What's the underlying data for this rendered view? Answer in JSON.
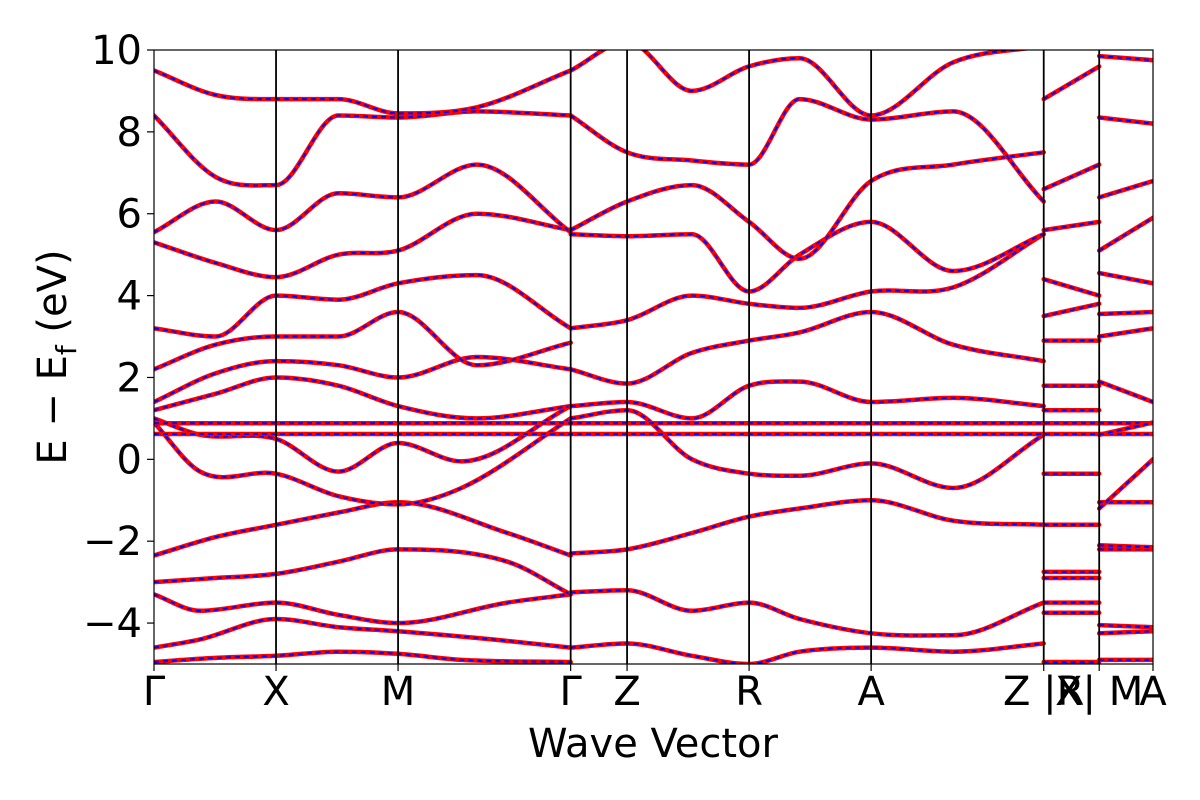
{
  "chart_data": {
    "type": "line",
    "title": "",
    "xlabel": "Wave Vector",
    "ylabel": "E − E_f (eV)",
    "ylabel_main": "E − E",
    "ylabel_sub": "f",
    "ylabel_tail": " (eV)",
    "ylim": [
      -5,
      10
    ],
    "yticks": [
      -4,
      -2,
      0,
      2,
      4,
      6,
      8,
      10
    ],
    "ytick_labels": [
      "−4",
      "−2",
      "0",
      "2",
      "4",
      "6",
      "8",
      "10"
    ],
    "xlim": [
      0,
      6.5
    ],
    "kpoints": [
      {
        "label": "Γ",
        "x": 0.0
      },
      {
        "label": "X",
        "x": 0.794
      },
      {
        "label": "M",
        "x": 1.588
      },
      {
        "label": "Γ",
        "x": 2.711
      },
      {
        "label": "Z",
        "x": 3.078
      },
      {
        "label": "R",
        "x": 3.872
      },
      {
        "label": "A",
        "x": 4.666
      },
      {
        "label": "Z |R",
        "x": 5.789
      },
      {
        "label": "X| M",
        "x": 6.15
      },
      {
        "label": "A",
        "x": 6.5
      }
    ],
    "segment_breaks": [
      5.789,
      6.15
    ],
    "grid": false,
    "legend": "none",
    "series": [
      {
        "color": "#ff0000",
        "style": "solid"
      },
      {
        "color": "#0000ff",
        "style": "dashed"
      }
    ],
    "bands": [
      {
        "x": [
          0,
          0.4,
          0.794,
          1.2,
          1.588,
          2.0,
          2.711
        ],
        "y": [
          -4.95,
          -4.85,
          -4.8,
          -4.7,
          -4.75,
          -4.9,
          -4.95
        ]
      },
      {
        "x": [
          0,
          0.3,
          0.794,
          1.2,
          1.588,
          2.2,
          2.711
        ],
        "y": [
          -4.6,
          -4.4,
          -3.9,
          -4.1,
          -4.2,
          -4.4,
          -4.6
        ]
      },
      {
        "x": [
          0,
          0.3,
          0.794,
          1.2,
          1.588,
          2.3,
          2.711
        ],
        "y": [
          -3.3,
          -3.7,
          -3.5,
          -3.8,
          -4.0,
          -3.5,
          -3.3
        ]
      },
      {
        "x": [
          0,
          0.4,
          0.794,
          1.2,
          1.588,
          2.3,
          2.711
        ],
        "y": [
          -3.0,
          -2.9,
          -2.8,
          -2.5,
          -2.2,
          -2.5,
          -3.3
        ]
      },
      {
        "x": [
          0,
          0.4,
          0.794,
          1.2,
          1.588,
          2.3,
          2.711
        ],
        "y": [
          -2.35,
          -1.9,
          -1.6,
          -1.3,
          -1.05,
          -1.8,
          -2.35
        ]
      },
      {
        "x": [
          0,
          0.3,
          0.794,
          1.2,
          1.588,
          2.0,
          2.711
        ],
        "y": [
          0.9,
          -0.3,
          -0.35,
          -0.9,
          -1.1,
          -0.7,
          1.0
        ]
      },
      {
        "x": [
          0,
          0.3,
          0.794,
          1.2,
          1.588,
          2.0,
          2.711
        ],
        "y": [
          1.0,
          0.6,
          0.5,
          -0.3,
          0.4,
          -0.05,
          1.3
        ]
      },
      {
        "x": [
          0,
          0.4,
          0.794,
          1.2,
          1.588,
          2.1,
          2.711
        ],
        "y": [
          1.2,
          1.6,
          2.0,
          1.8,
          1.3,
          1.0,
          1.3
        ]
      },
      {
        "x": [
          0,
          0.4,
          0.794,
          1.2,
          1.588,
          2.1,
          2.711
        ],
        "y": [
          1.4,
          2.1,
          2.4,
          2.3,
          2.0,
          2.5,
          2.2
        ]
      },
      {
        "x": [
          0,
          0.4,
          0.794,
          1.2,
          1.588,
          2.1,
          2.711
        ],
        "y": [
          2.2,
          2.8,
          3.0,
          3.0,
          3.6,
          2.3,
          2.85
        ]
      },
      {
        "x": [
          0,
          0.4,
          0.794,
          1.2,
          1.588,
          2.1,
          2.711
        ],
        "y": [
          3.2,
          3.0,
          4.0,
          3.9,
          4.3,
          4.5,
          3.2
        ]
      },
      {
        "x": [
          0,
          0.4,
          0.794,
          1.2,
          1.588,
          2.1,
          2.711
        ],
        "y": [
          5.3,
          4.8,
          4.45,
          5.0,
          5.1,
          6.0,
          5.6
        ]
      },
      {
        "x": [
          0,
          0.4,
          0.794,
          1.2,
          1.588,
          2.1,
          2.711
        ],
        "y": [
          5.55,
          6.3,
          5.6,
          6.5,
          6.4,
          7.2,
          5.55
        ]
      },
      {
        "x": [
          0,
          0.4,
          0.794,
          1.2,
          1.588,
          2.1,
          2.711
        ],
        "y": [
          8.4,
          6.9,
          6.7,
          8.4,
          8.35,
          8.5,
          8.4
        ]
      },
      {
        "x": [
          0,
          0.4,
          0.794,
          1.2,
          1.588,
          2.1,
          2.711
        ],
        "y": [
          9.5,
          8.9,
          8.8,
          8.8,
          8.45,
          8.6,
          9.5
        ]
      },
      {
        "x": [
          2.711,
          3.078,
          3.5,
          3.872,
          4.2,
          4.666,
          5.2,
          5.789
        ],
        "y": [
          -4.6,
          -4.5,
          -4.8,
          -5.0,
          -4.7,
          -4.6,
          -4.7,
          -4.5
        ]
      },
      {
        "x": [
          2.711,
          3.078,
          3.5,
          3.872,
          4.2,
          4.666,
          5.2,
          5.789
        ],
        "y": [
          -3.25,
          -3.2,
          -3.7,
          -3.5,
          -3.9,
          -4.25,
          -4.3,
          -3.5
        ]
      },
      {
        "x": [
          2.711,
          3.078,
          3.5,
          3.872,
          4.2,
          4.666,
          5.2,
          5.789
        ],
        "y": [
          -2.3,
          -2.2,
          -1.8,
          -1.4,
          -1.2,
          -1.0,
          -1.5,
          -1.6
        ]
      },
      {
        "x": [
          2.711,
          3.078,
          3.5,
          3.872,
          4.2,
          4.666,
          5.2,
          5.789
        ],
        "y": [
          1.0,
          1.2,
          0.0,
          -0.35,
          -0.4,
          -0.1,
          -0.7,
          0.6
        ]
      },
      {
        "x": [
          2.711,
          3.078,
          3.5,
          3.872,
          4.2,
          4.666,
          5.2,
          5.789
        ],
        "y": [
          1.3,
          1.4,
          1.0,
          1.8,
          1.9,
          1.4,
          1.5,
          1.3
        ]
      },
      {
        "x": [
          2.711,
          3.078,
          3.5,
          3.872,
          4.2,
          4.666,
          5.2,
          5.789
        ],
        "y": [
          2.2,
          1.85,
          2.6,
          2.9,
          3.1,
          3.6,
          2.8,
          2.4
        ]
      },
      {
        "x": [
          2.711,
          3.078,
          3.5,
          3.872,
          4.2,
          4.666,
          5.2,
          5.789
        ],
        "y": [
          3.2,
          3.4,
          4.0,
          3.8,
          3.7,
          4.1,
          4.2,
          5.5
        ]
      },
      {
        "x": [
          2.711,
          3.078,
          3.5,
          3.872,
          4.2,
          4.666,
          5.2,
          5.789
        ],
        "y": [
          5.5,
          5.45,
          5.5,
          4.1,
          5.0,
          5.8,
          4.6,
          5.5
        ]
      },
      {
        "x": [
          2.711,
          3.078,
          3.5,
          3.872,
          4.2,
          4.666,
          5.2,
          5.789
        ],
        "y": [
          5.6,
          6.3,
          6.7,
          5.8,
          4.9,
          6.8,
          7.2,
          7.5
        ]
      },
      {
        "x": [
          2.711,
          3.078,
          3.5,
          3.872,
          4.2,
          4.666,
          5.2,
          5.789
        ],
        "y": [
          8.4,
          7.5,
          7.3,
          7.2,
          8.8,
          8.3,
          8.5,
          6.3
        ]
      },
      {
        "x": [
          2.711,
          3.078,
          3.5,
          3.872,
          4.2,
          4.666,
          5.2,
          5.789
        ],
        "y": [
          9.5,
          10.2,
          9.0,
          9.6,
          9.8,
          8.4,
          9.7,
          10.1
        ]
      },
      {
        "x": [
          0,
          6.5
        ],
        "y": [
          0.62,
          0.62
        ]
      },
      {
        "x": [
          0,
          6.5
        ],
        "y": [
          0.88,
          0.88
        ]
      },
      {
        "x": [
          5.789,
          6.15
        ],
        "y": [
          -4.95,
          -4.95
        ]
      },
      {
        "x": [
          5.789,
          6.15
        ],
        "y": [
          -3.75,
          -3.75
        ]
      },
      {
        "x": [
          5.789,
          6.15
        ],
        "y": [
          -3.5,
          -3.5
        ]
      },
      {
        "x": [
          5.789,
          6.15
        ],
        "y": [
          -2.9,
          -2.9
        ]
      },
      {
        "x": [
          5.789,
          6.15
        ],
        "y": [
          -2.75,
          -2.75
        ]
      },
      {
        "x": [
          5.789,
          6.15
        ],
        "y": [
          -1.6,
          -1.6
        ]
      },
      {
        "x": [
          5.789,
          6.15
        ],
        "y": [
          -0.35,
          -0.35
        ]
      },
      {
        "x": [
          5.789,
          6.15
        ],
        "y": [
          1.2,
          1.2
        ]
      },
      {
        "x": [
          5.789,
          6.15
        ],
        "y": [
          1.8,
          1.8
        ]
      },
      {
        "x": [
          5.789,
          6.15
        ],
        "y": [
          2.9,
          2.9
        ]
      },
      {
        "x": [
          5.789,
          6.15
        ],
        "y": [
          3.5,
          3.8
        ]
      },
      {
        "x": [
          5.789,
          6.15
        ],
        "y": [
          4.4,
          4.0
        ]
      },
      {
        "x": [
          5.789,
          6.15
        ],
        "y": [
          5.6,
          5.8
        ]
      },
      {
        "x": [
          5.789,
          6.15
        ],
        "y": [
          6.6,
          7.2
        ]
      },
      {
        "x": [
          5.789,
          6.15
        ],
        "y": [
          8.8,
          9.6
        ]
      },
      {
        "x": [
          6.15,
          6.5
        ],
        "y": [
          -4.9,
          -4.9
        ]
      },
      {
        "x": [
          6.15,
          6.5
        ],
        "y": [
          -4.25,
          -4.2
        ]
      },
      {
        "x": [
          6.15,
          6.5
        ],
        "y": [
          -4.05,
          -4.1
        ]
      },
      {
        "x": [
          6.15,
          6.5
        ],
        "y": [
          -2.2,
          -2.2
        ]
      },
      {
        "x": [
          6.15,
          6.5
        ],
        "y": [
          -2.1,
          -2.15
        ]
      },
      {
        "x": [
          6.15,
          6.5
        ],
        "y": [
          -1.05,
          -1.05
        ]
      },
      {
        "x": [
          6.15,
          6.5
        ],
        "y": [
          -1.2,
          0.0
        ]
      },
      {
        "x": [
          6.15,
          6.5
        ],
        "y": [
          0.6,
          0.9
        ]
      },
      {
        "x": [
          6.15,
          6.5
        ],
        "y": [
          1.9,
          1.4
        ]
      },
      {
        "x": [
          6.15,
          6.5
        ],
        "y": [
          3.0,
          3.2
        ]
      },
      {
        "x": [
          6.15,
          6.5
        ],
        "y": [
          3.55,
          3.6
        ]
      },
      {
        "x": [
          6.15,
          6.5
        ],
        "y": [
          4.55,
          4.3
        ]
      },
      {
        "x": [
          6.15,
          6.5
        ],
        "y": [
          5.1,
          5.9
        ]
      },
      {
        "x": [
          6.15,
          6.5
        ],
        "y": [
          6.4,
          6.8
        ]
      },
      {
        "x": [
          6.15,
          6.5
        ],
        "y": [
          8.35,
          8.2
        ]
      },
      {
        "x": [
          6.15,
          6.5
        ],
        "y": [
          9.85,
          9.75
        ]
      }
    ]
  }
}
